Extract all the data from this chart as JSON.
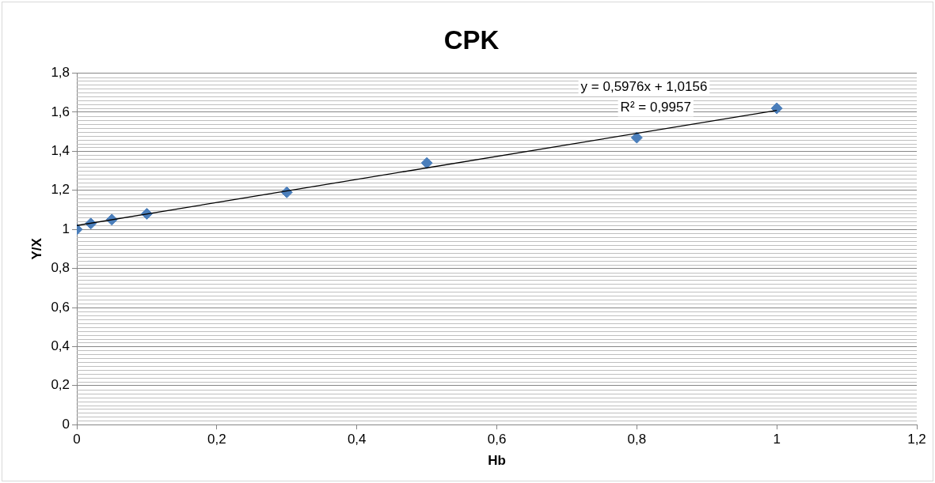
{
  "chart_data": {
    "type": "scatter",
    "title": "CPK",
    "xlabel": "Hb",
    "ylabel": "Y/X",
    "xlim": [
      0,
      1.2
    ],
    "ylim": [
      0,
      1.8
    ],
    "xticks": [
      0,
      {
        "value": 0.2,
        "label": "0,2"
      },
      {
        "value": 0.4,
        "label": "0,4"
      },
      {
        "value": 0.6,
        "label": "0,6"
      },
      {
        "value": 0.8,
        "label": "0,8"
      },
      1,
      {
        "value": 1.2,
        "label": "1,2"
      }
    ],
    "yticks": [
      0,
      {
        "value": 0.2,
        "label": "0,2"
      },
      {
        "value": 0.4,
        "label": "0,4"
      },
      {
        "value": 0.6,
        "label": "0,6"
      },
      {
        "value": 0.8,
        "label": "0,8"
      },
      1,
      {
        "value": 1.2,
        "label": "1,2"
      },
      {
        "value": 1.4,
        "label": "1,4"
      },
      {
        "value": 1.6,
        "label": "1,6"
      },
      {
        "value": 1.8,
        "label": "1,8"
      }
    ],
    "grid": "y",
    "legend": false,
    "series": [
      {
        "marker": "diamond",
        "color": "#4a7ebb",
        "x": [
          0,
          0.02,
          0.05,
          0.1,
          0.3,
          0.5,
          0.8,
          1
        ],
        "values": [
          1.0,
          1.03,
          1.05,
          1.08,
          1.19,
          1.34,
          1.47,
          1.62
        ]
      },
      {
        "type": "line",
        "marker": "none",
        "color": "#000000",
        "x": [
          0,
          1
        ],
        "values": [
          1.02,
          1.61
        ]
      }
    ],
    "annotations": [
      "y = 0,5976x + 1,0156",
      "R² = 0,9957"
    ]
  }
}
